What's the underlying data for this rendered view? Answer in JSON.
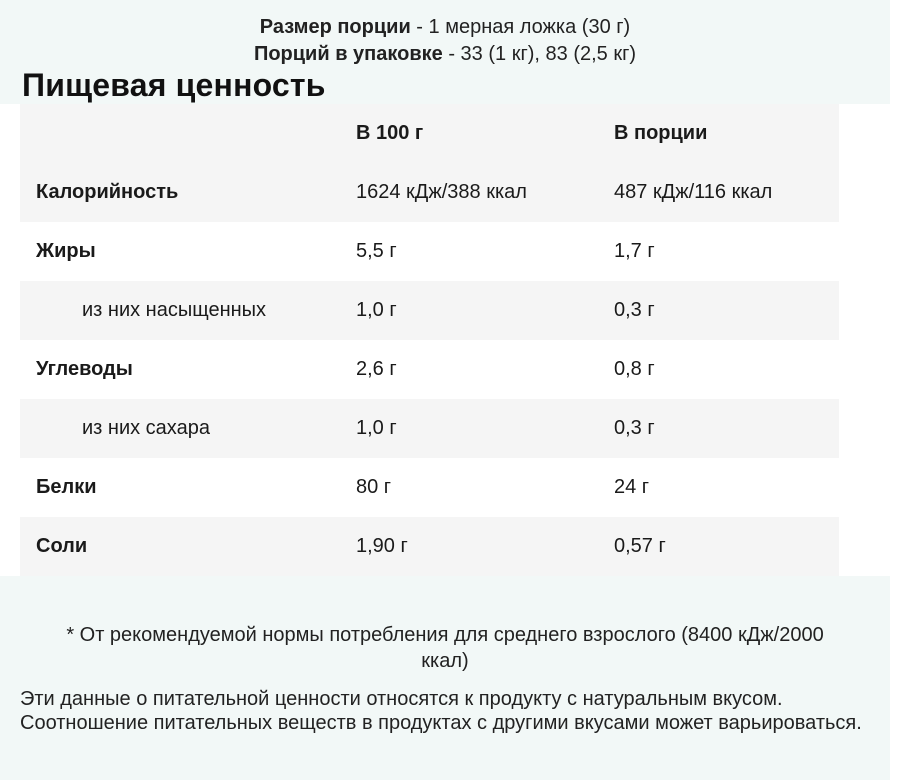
{
  "header": {
    "serving_size_label": "Размер порции",
    "serving_size_value": " - 1 мерная ложка (30 г)",
    "servings_label": "Порций в упаковке",
    "servings_value": " - 33 (1 кг), 83 (2,5 кг)"
  },
  "title": "Пищевая ценность",
  "table": {
    "columns": [
      "",
      "В 100 г",
      "В порции"
    ],
    "rows": [
      {
        "name": "Калорийность",
        "per100": "1624 кДж/388 ккал",
        "portion": "487 кДж/116 ккал"
      },
      {
        "name": "Жиры",
        "per100": "5,5 г",
        "portion": "1,7 г"
      },
      {
        "name": "из них насыщенных",
        "per100": "1,0 г",
        "portion": "0,3 г"
      },
      {
        "name": "Углеводы",
        "per100": "2,6 г",
        "portion": "0,8 г"
      },
      {
        "name": "из них сахара",
        "per100": "1,0 г",
        "portion": "0,3 г"
      },
      {
        "name": "Белки",
        "per100": "80 г",
        "portion": "24 г"
      },
      {
        "name": "Соли",
        "per100": "1,90 г",
        "portion": "0,57 г"
      }
    ]
  },
  "footnote": {
    "line1": "* От рекомендуемой нормы потребления для среднего взрослого (8400 кДж/2000",
    "line2": "ккал)"
  },
  "note": "Эти данные о питательной ценности относятся к продукту с натуральным вкусом. Соотношение питательных веществ в продуктах с другими вкусами может варьироваться.",
  "colors": {
    "band_background": "#f2f8f7",
    "table_stripe": "#f5f5f5",
    "table_white": "#ffffff"
  }
}
